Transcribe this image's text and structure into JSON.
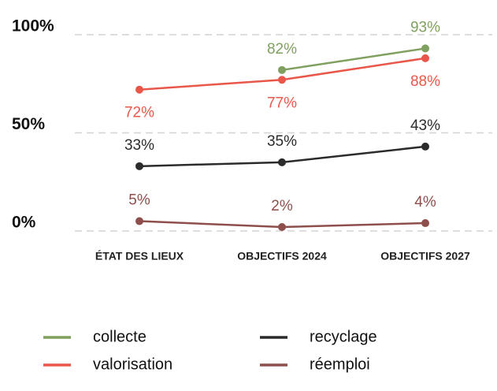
{
  "chart_data": {
    "type": "line",
    "categories": [
      "ÉTAT DES LIEUX",
      "OBJECTIFS 2024",
      "OBJECTIFS 2027"
    ],
    "series": [
      {
        "name": "collecte",
        "color": "#7fa05f",
        "values": [
          null,
          82,
          93
        ],
        "value_labels": [
          null,
          "82%",
          "93%"
        ]
      },
      {
        "name": "valorisation",
        "color": "#e8574a",
        "values": [
          72,
          77,
          88
        ],
        "value_labels": [
          "72%",
          "77%",
          "88%"
        ]
      },
      {
        "name": "recyclage",
        "color": "#2b2b2b",
        "values": [
          33,
          35,
          43
        ],
        "value_labels": [
          "33%",
          "35%",
          "43%"
        ]
      },
      {
        "name": "réemploi",
        "color": "#8e4f4c",
        "values": [
          5,
          2,
          4
        ],
        "value_labels": [
          "5%",
          "2%",
          "4%"
        ]
      }
    ],
    "ylim": [
      0,
      100
    ],
    "yticks": [
      {
        "value": 0,
        "label": "0%"
      },
      {
        "value": 50,
        "label": "50%"
      },
      {
        "value": 100,
        "label": "100%"
      }
    ],
    "grid": true
  }
}
